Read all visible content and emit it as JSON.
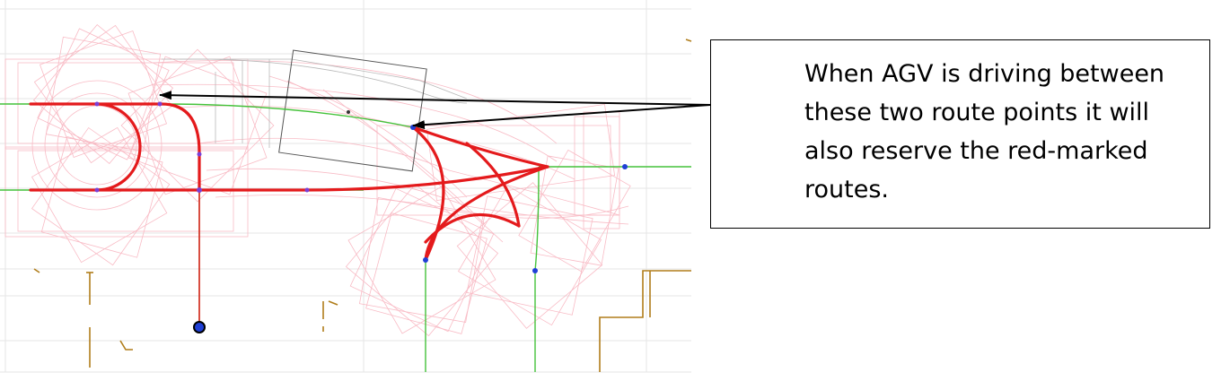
{
  "annotation": {
    "text": "When AGV is driving between these two route points it will also reserve the red-marked routes."
  },
  "colors": {
    "reserved_route": "#e41a1c",
    "route_line": "#44c23a",
    "footprint": "#f8b4bf",
    "route_point": "#1f3fd6",
    "wall": "#b07d1a",
    "grid": "#e6e6e6",
    "arrow": "#000000"
  },
  "icons": [
    "route-point-icon",
    "agv-position-icon",
    "arrow-icon"
  ]
}
